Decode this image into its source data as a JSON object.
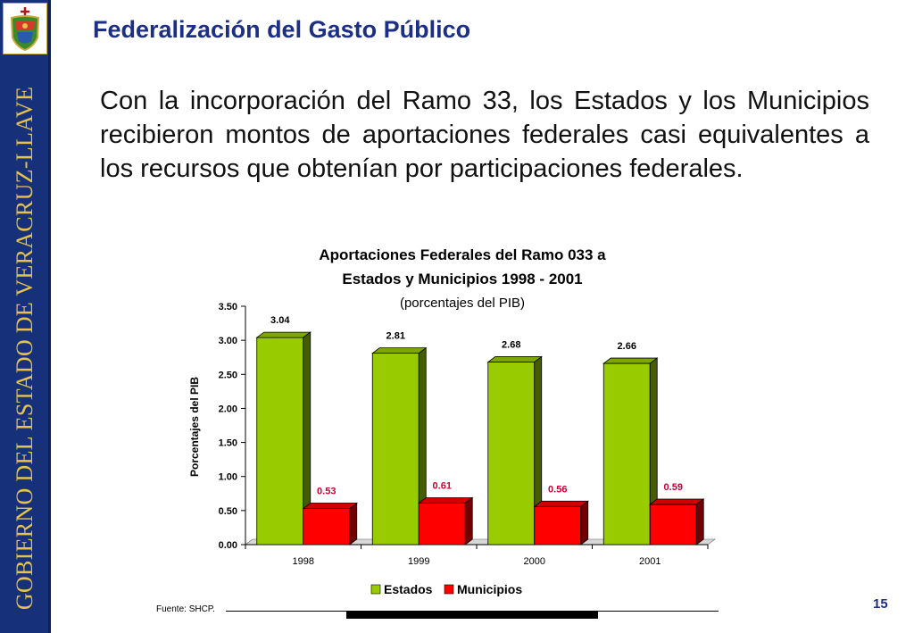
{
  "sidebar": {
    "text": "GOBIERNO DEL ESTADO DE VERACRUZ-LLAVE"
  },
  "slide": {
    "title": "Federalización del Gasto Público",
    "body": "Con la incorporación del Ramo 33, los Estados y los Municipios recibieron montos de aportaciones federales casi equivalentes a los recursos que obtenían por participaciones federales.",
    "source": "Fuente: SHCP.",
    "page_number": "15"
  },
  "chart_data": {
    "type": "bar",
    "title_line1": "Aportaciones Federales del Ramo 033 a",
    "title_line2": "Estados y Municipios 1998 - 2001",
    "subtitle": "(porcentajes del PIB)",
    "xlabel": "",
    "ylabel": "Porcentajes del PIB",
    "categories": [
      "1998",
      "1999",
      "2000",
      "2001"
    ],
    "series": [
      {
        "name": "Estados",
        "values": [
          3.04,
          2.81,
          2.68,
          2.66
        ],
        "color": "#99cc00",
        "label_color": "#000000"
      },
      {
        "name": "Municipios",
        "values": [
          0.53,
          0.61,
          0.56,
          0.59
        ],
        "color": "#ff0000",
        "label_color": "#cc0033"
      }
    ],
    "ylim": [
      0,
      3.5
    ],
    "yticks": [
      "0.00",
      "0.50",
      "1.00",
      "1.50",
      "2.00",
      "2.50",
      "3.00",
      "3.50"
    ],
    "legend": "bottom",
    "grid": false
  }
}
